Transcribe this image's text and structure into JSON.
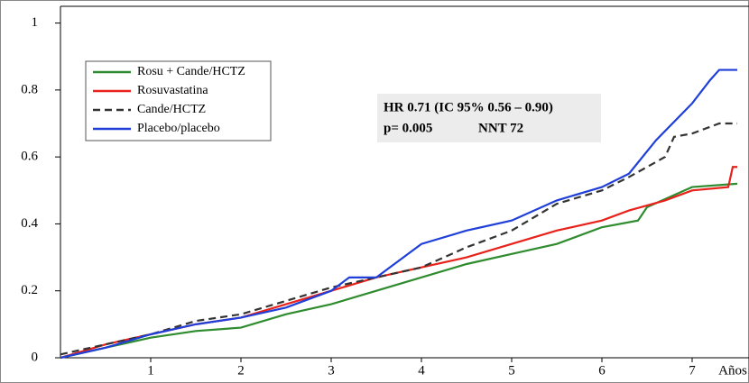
{
  "chart_data": {
    "type": "line",
    "x_label": "Años",
    "xlim": [
      0,
      7.63
    ],
    "ylim": [
      0,
      1.05
    ],
    "xticks": [
      1,
      2,
      3,
      4,
      5,
      6,
      7
    ],
    "yticks": [
      0,
      0.2,
      0.4,
      0.6,
      0.8,
      1
    ],
    "legend": "upper left",
    "annotations": [
      "HR 0.71 (IC 95% 0.56 – 0.90)",
      "p= 0.005",
      "NNT 72"
    ],
    "series": [
      {
        "name": "Rosu + Cande/HCTZ",
        "color": "#2e8b2e",
        "dash": false,
        "x": [
          0,
          0.5,
          1,
          1.5,
          2,
          2.5,
          3,
          3.5,
          4,
          4.5,
          5,
          5.5,
          6,
          6.4,
          6.5,
          7,
          7.5
        ],
        "values": [
          0,
          0.03,
          0.06,
          0.08,
          0.09,
          0.13,
          0.16,
          0.2,
          0.24,
          0.28,
          0.31,
          0.34,
          0.39,
          0.41,
          0.45,
          0.51,
          0.52
        ]
      },
      {
        "name": "Rosuvastatina",
        "color": "#e8221b",
        "dash": false,
        "x": [
          0,
          0.5,
          1,
          1.5,
          2,
          2.5,
          3,
          3.5,
          4,
          4.5,
          5,
          5.5,
          6,
          6.3,
          6.7,
          7,
          7.4,
          7.45,
          7.5
        ],
        "values": [
          0,
          0.04,
          0.07,
          0.1,
          0.12,
          0.16,
          0.2,
          0.24,
          0.27,
          0.3,
          0.34,
          0.38,
          0.41,
          0.44,
          0.47,
          0.5,
          0.51,
          0.57,
          0.57
        ]
      },
      {
        "name": "Cande/HCTZ",
        "color": "#333333",
        "dash": true,
        "x": [
          0,
          0.5,
          1,
          1.5,
          2,
          2.5,
          3,
          3.5,
          4,
          4.5,
          5,
          5.5,
          6,
          6.3,
          6.7,
          6.8,
          7,
          7.3,
          7.5
        ],
        "values": [
          0.01,
          0.04,
          0.07,
          0.11,
          0.13,
          0.17,
          0.21,
          0.24,
          0.27,
          0.33,
          0.38,
          0.46,
          0.5,
          0.54,
          0.6,
          0.66,
          0.67,
          0.7,
          0.7
        ]
      },
      {
        "name": "Placebo/placebo",
        "color": "#1f3fd8",
        "dash": false,
        "x": [
          0,
          0.5,
          1,
          1.5,
          2,
          2.5,
          3,
          3.2,
          3.5,
          3.7,
          4,
          4.5,
          5,
          5.5,
          6,
          6.3,
          6.6,
          7,
          7.2,
          7.3,
          7.5
        ],
        "values": [
          0,
          0.03,
          0.07,
          0.1,
          0.12,
          0.15,
          0.2,
          0.24,
          0.24,
          0.28,
          0.34,
          0.38,
          0.41,
          0.47,
          0.51,
          0.55,
          0.65,
          0.76,
          0.83,
          0.86,
          0.86
        ]
      }
    ]
  }
}
